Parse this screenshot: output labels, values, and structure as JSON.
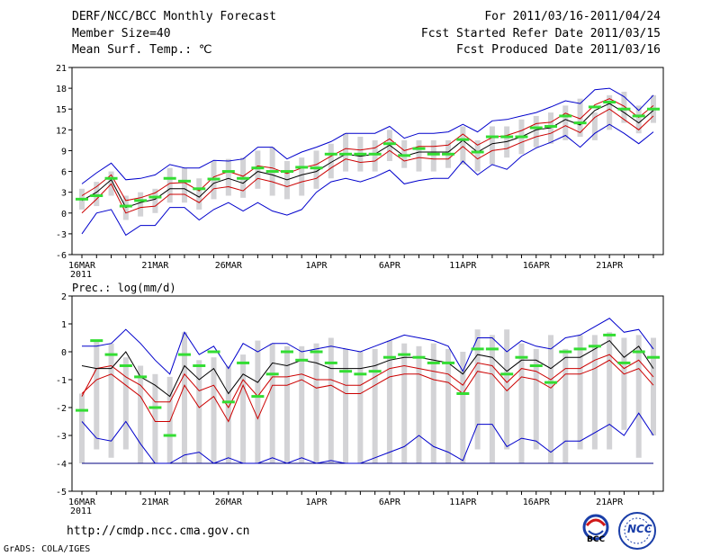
{
  "header": {
    "title": "DERF/NCC/BCC Monthly Forecast",
    "member_size": "Member Size=40",
    "variable": "Mean Surf. Temp.: ℃",
    "period": "For 2011/03/16-2011/04/24",
    "start_date": "Fcst Started Refer Date 2011/03/15",
    "produced_date": "Fcst Produced Date 2011/03/16"
  },
  "footer": {
    "url": "http://cmdp.ncc.cma.gov.cn",
    "grads": "GrADS: COLA/IGES",
    "logo_bcc": "BCC",
    "logo_ncc": "NCC"
  },
  "x_ticks": [
    {
      "day": 0,
      "label": "16MAR",
      "sub": "2011"
    },
    {
      "day": 5,
      "label": "21MAR",
      "sub": ""
    },
    {
      "day": 10,
      "label": "26MAR",
      "sub": ""
    },
    {
      "day": 16,
      "label": "1APR",
      "sub": ""
    },
    {
      "day": 21,
      "label": "6APR",
      "sub": ""
    },
    {
      "day": 26,
      "label": "11APR",
      "sub": ""
    },
    {
      "day": 31,
      "label": "16APR",
      "sub": ""
    },
    {
      "day": 36,
      "label": "21APR",
      "sub": ""
    }
  ],
  "colors": {
    "box": "#d3d3d6",
    "mean": "#000000",
    "spread": "#cc0000",
    "extreme": "#0000cc",
    "marker": "#33dd33",
    "obs": "#000080"
  },
  "chart_data": [
    {
      "type": "box",
      "title": "Mean Surf. Temp.: ℃",
      "ylim": [
        -6,
        21
      ],
      "yticks": [
        -6,
        -3,
        0,
        3,
        6,
        9,
        12,
        15,
        18,
        21
      ],
      "days": [
        0,
        1,
        2,
        3,
        4,
        5,
        6,
        7,
        8,
        9,
        10,
        11,
        12,
        13,
        14,
        15,
        16,
        17,
        18,
        19,
        20,
        21,
        22,
        23,
        24,
        25,
        26,
        27,
        28,
        29,
        30,
        31,
        32,
        33,
        34,
        35,
        36,
        37,
        38,
        39
      ],
      "box_low": [
        0.5,
        1,
        2.5,
        -1,
        -0.5,
        0,
        1.5,
        1.5,
        0.5,
        2,
        2.5,
        2.2,
        3.5,
        2.5,
        2,
        2.5,
        3.5,
        5,
        6,
        6,
        6,
        7.5,
        6.5,
        6,
        6,
        6.5,
        7,
        6,
        7,
        8,
        8.5,
        9.5,
        10,
        10.5,
        11,
        10.5,
        12,
        13,
        11.5,
        13
      ],
      "box_high": [
        3.5,
        4.5,
        6,
        2.5,
        3,
        3.5,
        6.5,
        6.5,
        5,
        7.5,
        7.8,
        8,
        9,
        9.5,
        7.5,
        8,
        9,
        10,
        11.5,
        11,
        10.5,
        12,
        10.5,
        10.5,
        10.5,
        10.5,
        12.5,
        10.5,
        12.5,
        12.5,
        13.5,
        14,
        14.5,
        15.5,
        16.5,
        14.5,
        17,
        17.5,
        15.5,
        17
      ],
      "mean": [
        1.8,
        3,
        4.8,
        0.8,
        1.5,
        2,
        3.5,
        3.5,
        2.3,
        4.3,
        5,
        4.3,
        6,
        5.5,
        4.8,
        5.5,
        6,
        7.3,
        8.5,
        8.2,
        8.5,
        9.8,
        8.2,
        8.8,
        8.8,
        8.8,
        10.5,
        8.8,
        10,
        10.3,
        11,
        12,
        12.3,
        13.5,
        12.7,
        14.8,
        15.8,
        14.5,
        13,
        14.8
      ],
      "spread_low": [
        0,
        2,
        4.2,
        0,
        0.8,
        1,
        2.7,
        2.7,
        1.5,
        3.5,
        3.8,
        3.2,
        5,
        4.5,
        3.8,
        4.5,
        5,
        6.5,
        7.8,
        7.3,
        7.5,
        9,
        7.5,
        8,
        7.8,
        7.8,
        9.6,
        7.8,
        9,
        9.3,
        10.2,
        11,
        11.5,
        12.6,
        11.6,
        13.8,
        15,
        13.5,
        12,
        14
      ],
      "spread_high": [
        2.5,
        3.8,
        5.5,
        1.8,
        2.2,
        2.9,
        4.3,
        4.4,
        3.2,
        5.2,
        6,
        5.3,
        6.8,
        6.5,
        5.7,
        6.5,
        7,
        8.2,
        9.3,
        9.1,
        9.4,
        10.7,
        9,
        9.6,
        9.6,
        9.8,
        11.4,
        9.8,
        10.9,
        11.2,
        11.9,
        12.9,
        13.1,
        14.4,
        13.6,
        15.6,
        16.5,
        15.4,
        13.8,
        15.5
      ],
      "ext_low": [
        -3,
        0,
        0.5,
        -3.2,
        -1.8,
        -1.8,
        0.8,
        0.8,
        -1,
        0.5,
        1.5,
        0.3,
        1.5,
        0.3,
        -0.3,
        0.5,
        3,
        4.5,
        5,
        4.5,
        5.2,
        6.2,
        4.2,
        4.7,
        5,
        5,
        7.5,
        5.5,
        7,
        6.3,
        8.2,
        9.4,
        10.2,
        11.2,
        9.5,
        11.5,
        12.8,
        11.5,
        10,
        11.7
      ],
      "ext_high": [
        4.2,
        5.8,
        7.2,
        4.8,
        5,
        5.5,
        7,
        6.5,
        6.5,
        7.6,
        7.5,
        7.8,
        9.5,
        9.5,
        7.8,
        8.8,
        9.5,
        10.3,
        11.5,
        11.5,
        11.5,
        12.5,
        10.8,
        11.5,
        11.5,
        11.7,
        12.8,
        11.7,
        13.3,
        13.5,
        14,
        14.5,
        15.3,
        16.2,
        15.8,
        17.8,
        18,
        16.8,
        14.8,
        17
      ],
      "markers": [
        2,
        2.5,
        5,
        1,
        1.8,
        2.3,
        5,
        4.6,
        3.5,
        4.9,
        6,
        5,
        6.5,
        6,
        6,
        6.6,
        6.5,
        8.5,
        8.5,
        8.5,
        8.5,
        10,
        8.3,
        9.3,
        8.5,
        8.5,
        10.6,
        8.8,
        11,
        11,
        11,
        12.3,
        12.5,
        14,
        13,
        15.3,
        16,
        15,
        14,
        15
      ]
    },
    {
      "type": "box",
      "title": "Prec.: log(mm/d)",
      "ylim": [
        -5,
        2
      ],
      "yticks": [
        -5,
        -4,
        -3,
        -2,
        -1,
        0,
        1,
        2
      ],
      "days": [
        0,
        1,
        2,
        3,
        4,
        5,
        6,
        7,
        8,
        9,
        10,
        11,
        12,
        13,
        14,
        15,
        16,
        17,
        18,
        19,
        20,
        21,
        22,
        23,
        24,
        25,
        26,
        27,
        28,
        29,
        30,
        31,
        32,
        33,
        34,
        35,
        36,
        37,
        38,
        39
      ],
      "box_low": [
        -4,
        -3.5,
        -3.8,
        -3.5,
        -4,
        -4,
        -4,
        -4,
        -4,
        -4,
        -4,
        -4,
        -4,
        -4,
        -4,
        -4,
        -4,
        -4,
        -4,
        -4,
        -4,
        -4,
        -4,
        -4,
        -4,
        -4,
        -4,
        -3.5,
        -4,
        -3.5,
        -4,
        -3.5,
        -4,
        -4,
        -3.5,
        -3.5,
        -3.5,
        -2.8,
        -3.8,
        -3
      ],
      "box_high": [
        -1.5,
        0.4,
        0.3,
        -0.2,
        -0.5,
        -0.8,
        -0.9,
        0.7,
        -0.3,
        -0.2,
        -0.5,
        -0.1,
        0.4,
        0.3,
        0.2,
        0.2,
        0.3,
        0.5,
        0.1,
        0,
        0.1,
        0.4,
        0.3,
        0.2,
        0.3,
        0.1,
        0,
        0.8,
        0.6,
        0.8,
        0.3,
        0.1,
        0.6,
        0.1,
        0.6,
        0.6,
        0.7,
        0.5,
        0.6,
        0.5
      ],
      "mean": [
        -0.5,
        -0.6,
        -0.6,
        0,
        -0.9,
        -1.2,
        -1.6,
        -0.5,
        -1,
        -0.6,
        -1.5,
        -0.8,
        -1.1,
        -0.4,
        -0.5,
        -0.3,
        -0.4,
        -0.6,
        -0.6,
        -0.6,
        -0.5,
        -0.3,
        -0.2,
        -0.2,
        -0.3,
        -0.4,
        -0.8,
        -0.1,
        -0.2,
        -0.7,
        -0.3,
        -0.3,
        -0.6,
        -0.2,
        -0.2,
        0.1,
        0.4,
        -0.2,
        0.2,
        -0.6
      ],
      "spread_low": [
        -1.5,
        -1,
        -0.8,
        -1.2,
        -1.6,
        -2.5,
        -2.5,
        -1.2,
        -2,
        -1.6,
        -2.5,
        -1.2,
        -2.4,
        -1.2,
        -1.2,
        -1,
        -1.3,
        -1.2,
        -1.5,
        -1.5,
        -1.2,
        -0.9,
        -0.8,
        -0.8,
        -1,
        -1.1,
        -1.5,
        -0.7,
        -0.8,
        -1.4,
        -0.9,
        -1,
        -1.3,
        -0.8,
        -0.8,
        -0.6,
        -0.3,
        -0.8,
        -0.6,
        -1.2
      ],
      "spread_high": [
        -1.6,
        -0.6,
        -0.5,
        -0.9,
        -1.2,
        -1.8,
        -1.8,
        -0.8,
        -1.4,
        -1.2,
        -2,
        -1,
        -1.6,
        -0.9,
        -0.9,
        -0.8,
        -1,
        -1,
        -1.2,
        -1.2,
        -0.9,
        -0.6,
        -0.5,
        -0.6,
        -0.7,
        -0.8,
        -1.2,
        -0.4,
        -0.5,
        -1.1,
        -0.6,
        -0.7,
        -1,
        -0.6,
        -0.6,
        -0.3,
        -0.1,
        -0.6,
        -0.3,
        -0.9
      ],
      "ext_low": [
        -2.5,
        -3.1,
        -3.2,
        -2.5,
        -3.3,
        -4,
        -4,
        -3.7,
        -3.6,
        -4,
        -3.8,
        -4,
        -4,
        -3.8,
        -4,
        -3.8,
        -4,
        -3.9,
        -4,
        -4,
        -3.8,
        -3.6,
        -3.4,
        -3,
        -3.4,
        -3.6,
        -3.9,
        -2.6,
        -2.6,
        -3.4,
        -3.1,
        -3.2,
        -3.6,
        -3.2,
        -3.2,
        -2.9,
        -2.6,
        -3,
        -2.2,
        -3
      ],
      "ext_high": [
        0.2,
        0.2,
        0.3,
        0.8,
        0.3,
        -0.3,
        -0.8,
        0.7,
        -0.1,
        0.2,
        -0.6,
        0.3,
        0,
        0.3,
        0.3,
        0,
        0.1,
        0.2,
        0.1,
        0,
        0.2,
        0.4,
        0.6,
        0.5,
        0.4,
        0.2,
        -0.7,
        0.5,
        0.5,
        0,
        0.4,
        0.2,
        0.1,
        0.5,
        0.6,
        0.9,
        1.2,
        0.7,
        0.8,
        0.1
      ],
      "markers": [
        -2.1,
        0.4,
        -0.1,
        -0.5,
        -0.9,
        -2,
        -3,
        -0.1,
        -0.5,
        0,
        -1.8,
        -0.4,
        -1.6,
        -0.8,
        0,
        -0.3,
        0,
        -0.4,
        -0.7,
        -0.8,
        -0.7,
        -0.2,
        -0.1,
        -0.2,
        -0.4,
        -0.4,
        -1.5,
        0.1,
        0.1,
        -0.8,
        -0.2,
        -0.5,
        -1.1,
        0,
        0.1,
        0.2,
        0.6,
        -0.4,
        0,
        -0.2
      ]
    }
  ]
}
